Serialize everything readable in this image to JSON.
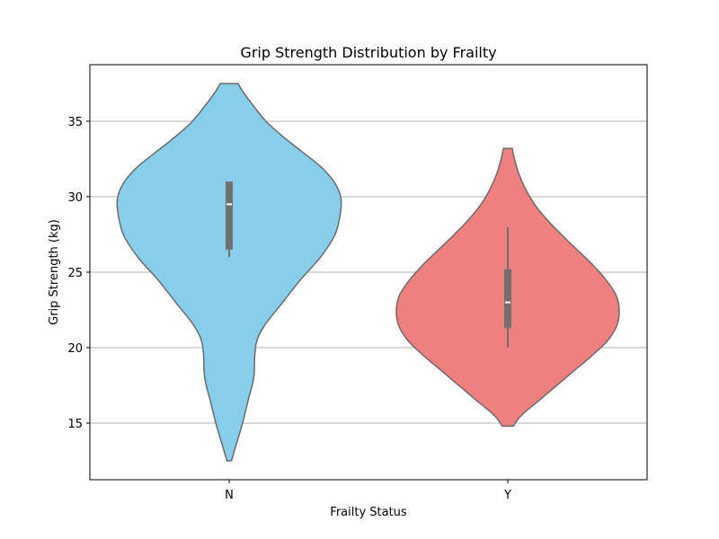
{
  "chart_data": {
    "type": "violin",
    "title": "Grip Strength Distribution by Frailty",
    "xlabel": "Frailty Status",
    "ylabel": "Grip Strength (kg)",
    "categories": [
      "N",
      "Y"
    ],
    "ylim": [
      11.25,
      38.75
    ],
    "yticks": [
      15,
      20,
      25,
      30,
      35
    ],
    "grid": "horizontal",
    "colors": [
      "#87CEEB",
      "#F08080"
    ],
    "outline_color": "#6b6b6b",
    "violins": [
      {
        "category": "N",
        "min": 12.5,
        "max": 37.5,
        "q1": 26.5,
        "median": 29.5,
        "q3": 31.0,
        "whisker_low": 26.0,
        "whisker_high": 31.0,
        "density_profile": [
          [
            12.5,
            0.02
          ],
          [
            13.5,
            0.06
          ],
          [
            15.0,
            0.12
          ],
          [
            16.5,
            0.17
          ],
          [
            18.0,
            0.22
          ],
          [
            19.5,
            0.23
          ],
          [
            20.5,
            0.25
          ],
          [
            21.5,
            0.32
          ],
          [
            23.0,
            0.48
          ],
          [
            24.5,
            0.64
          ],
          [
            26.0,
            0.82
          ],
          [
            27.5,
            0.95
          ],
          [
            29.0,
            1.0
          ],
          [
            30.0,
            1.0
          ],
          [
            31.0,
            0.94
          ],
          [
            32.0,
            0.82
          ],
          [
            33.0,
            0.65
          ],
          [
            34.0,
            0.48
          ],
          [
            35.0,
            0.33
          ],
          [
            36.0,
            0.22
          ],
          [
            37.0,
            0.12
          ],
          [
            37.5,
            0.08
          ]
        ]
      },
      {
        "category": "Y",
        "min": 14.8,
        "max": 33.2,
        "q1": 21.3,
        "median": 23.0,
        "q3": 25.2,
        "whisker_low": 20.0,
        "whisker_high": 28.0,
        "density_profile": [
          [
            14.8,
            0.05
          ],
          [
            15.5,
            0.12
          ],
          [
            16.5,
            0.28
          ],
          [
            17.5,
            0.44
          ],
          [
            18.5,
            0.6
          ],
          [
            19.5,
            0.76
          ],
          [
            20.5,
            0.9
          ],
          [
            21.5,
            0.98
          ],
          [
            22.5,
            1.0
          ],
          [
            23.5,
            0.97
          ],
          [
            24.5,
            0.88
          ],
          [
            25.5,
            0.76
          ],
          [
            26.5,
            0.62
          ],
          [
            27.5,
            0.48
          ],
          [
            28.5,
            0.35
          ],
          [
            29.5,
            0.24
          ],
          [
            30.5,
            0.16
          ],
          [
            31.5,
            0.1
          ],
          [
            32.5,
            0.06
          ],
          [
            33.2,
            0.04
          ]
        ]
      }
    ]
  }
}
